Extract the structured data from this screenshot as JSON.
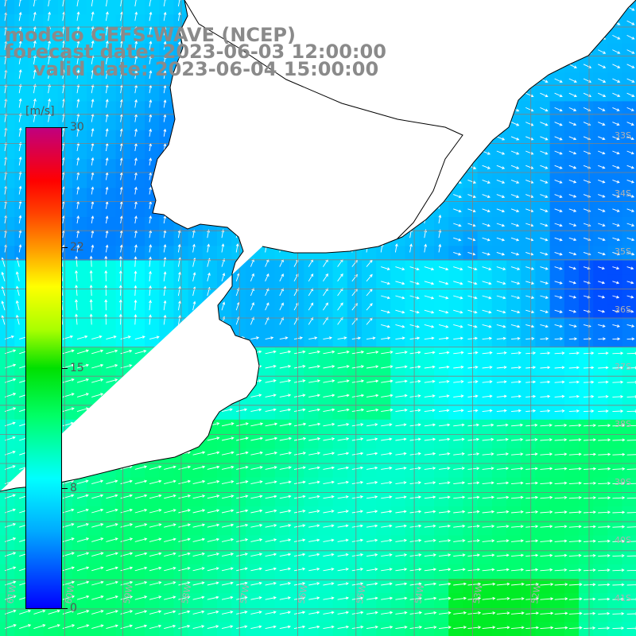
{
  "header": {
    "line1": "modelo GEFS-WAVE (NCEP)",
    "line2": "forecast date: 2023-06-03 12:00:00",
    "line3": "valid date: 2023-06-04 15:00:00"
  },
  "colorbar": {
    "unit": "[m/s]",
    "ticks": [
      "30",
      "22",
      "15",
      "8",
      "0"
    ]
  },
  "lat_labels": [
    "33S",
    "34S",
    "35S",
    "36S",
    "37S",
    "38S",
    "39S",
    "40S",
    "41S"
  ],
  "lon_labels": [
    "61W",
    "60W",
    "59W",
    "58W",
    "57W",
    "56W",
    "55W",
    "54W",
    "53W",
    "52W"
  ],
  "colors": {
    "land": "#ffffff",
    "grid": "#808080",
    "coast": "#000000",
    "arrow": "#ffffff",
    "title": "#8a8a8a"
  }
}
